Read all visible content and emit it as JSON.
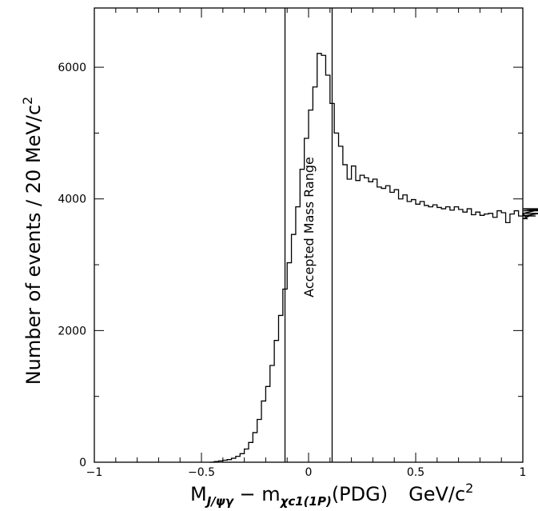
{
  "chart_data": {
    "type": "histogram",
    "title": "",
    "xlabel": {
      "main": "M",
      "main_sub": "J/ψγ",
      "minus": " − m",
      "minus_sub": "χc1(1P)",
      "pdg": "(PDG)",
      "unit": "GeV/c",
      "unit_sup": "2"
    },
    "ylabel": {
      "text": "Number of events / 20 MeV/c",
      "sup": "2"
    },
    "xlim": [
      -1,
      1
    ],
    "ylim": [
      0,
      6900
    ],
    "x_ticks": [
      {
        "value": -1,
        "label": "−1"
      },
      {
        "value": -0.5,
        "label": "−0.5"
      },
      {
        "value": 0,
        "label": "0"
      },
      {
        "value": 0.5,
        "label": "0.5"
      },
      {
        "value": 1,
        "label": "1"
      }
    ],
    "y_ticks": [
      {
        "value": 0,
        "label": "0"
      },
      {
        "value": 2000,
        "label": "2000"
      },
      {
        "value": 4000,
        "label": "4000"
      },
      {
        "value": 6000,
        "label": "6000"
      }
    ],
    "bin_width": 0.02,
    "bins_start": -0.46,
    "bin_counts": [
      0,
      10,
      20,
      30,
      40,
      60,
      90,
      130,
      200,
      300,
      450,
      650,
      930,
      1150,
      1470,
      1850,
      2230,
      2630,
      3030,
      3460,
      3880,
      4450,
      4920,
      5350,
      5700,
      6210,
      6180,
      5880,
      5450,
      5000,
      4800,
      4520,
      4300,
      4500,
      4280,
      4360,
      4320,
      4260,
      4300,
      4180,
      4160,
      4200,
      4100,
      4140,
      4000,
      4060,
      3960,
      3990,
      3920,
      3960,
      3900,
      3880,
      3910,
      3870,
      3850,
      3880,
      3830,
      3880,
      3840,
      3800,
      3850,
      3760,
      3800,
      3750,
      3770,
      3780,
      3720,
      3820,
      3790,
      3640,
      3770,
      3820,
      3740,
      3780,
      3700,
      3750,
      3740,
      3780,
      3850,
      3820,
      3850
    ],
    "vertical_lines": [
      -0.11,
      0.11
    ],
    "annotations": [
      {
        "text": "Accepted Mass Range",
        "x": 0.0,
        "y": 2600
      }
    ],
    "grid": false,
    "legend": "none"
  }
}
